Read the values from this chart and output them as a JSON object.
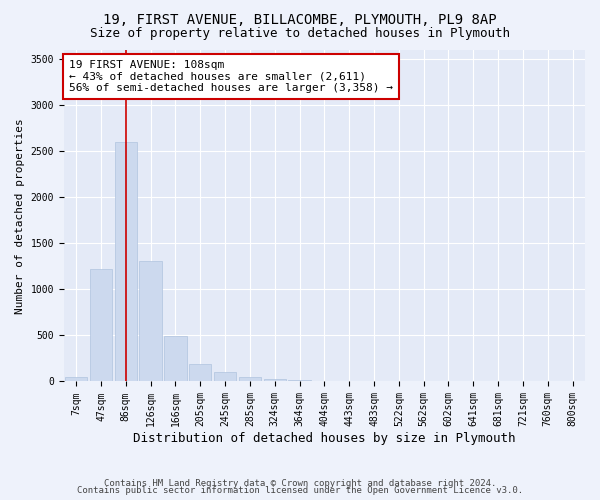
{
  "title1": "19, FIRST AVENUE, BILLACOMBE, PLYMOUTH, PL9 8AP",
  "title2": "Size of property relative to detached houses in Plymouth",
  "xlabel": "Distribution of detached houses by size in Plymouth",
  "ylabel": "Number of detached properties",
  "categories": [
    "7sqm",
    "47sqm",
    "86sqm",
    "126sqm",
    "166sqm",
    "205sqm",
    "245sqm",
    "285sqm",
    "324sqm",
    "364sqm",
    "404sqm",
    "443sqm",
    "483sqm",
    "522sqm",
    "562sqm",
    "602sqm",
    "641sqm",
    "681sqm",
    "721sqm",
    "760sqm",
    "800sqm"
  ],
  "values": [
    50,
    1220,
    2600,
    1310,
    490,
    190,
    100,
    50,
    30,
    12,
    5,
    3,
    2,
    1,
    1,
    1,
    1,
    1,
    1,
    1,
    1
  ],
  "bar_color": "#ccd9ee",
  "bar_edge_color": "#b0c4de",
  "vline_color": "#cc0000",
  "annotation_text": "19 FIRST AVENUE: 108sqm\n← 43% of detached houses are smaller (2,611)\n56% of semi-detached houses are larger (3,358) →",
  "annotation_box_color": "white",
  "annotation_box_edge": "#cc0000",
  "ylim": [
    0,
    3600
  ],
  "yticks": [
    0,
    500,
    1000,
    1500,
    2000,
    2500,
    3000,
    3500
  ],
  "footer1": "Contains HM Land Registry data © Crown copyright and database right 2024.",
  "footer2": "Contains public sector information licensed under the Open Government Licence v3.0.",
  "background_color": "#eef2fb",
  "plot_bg_color": "#e4eaf7",
  "grid_color": "#ffffff",
  "title1_fontsize": 10,
  "title2_fontsize": 9,
  "xlabel_fontsize": 9,
  "ylabel_fontsize": 8,
  "tick_fontsize": 7,
  "annotation_fontsize": 8,
  "footer_fontsize": 6.5
}
